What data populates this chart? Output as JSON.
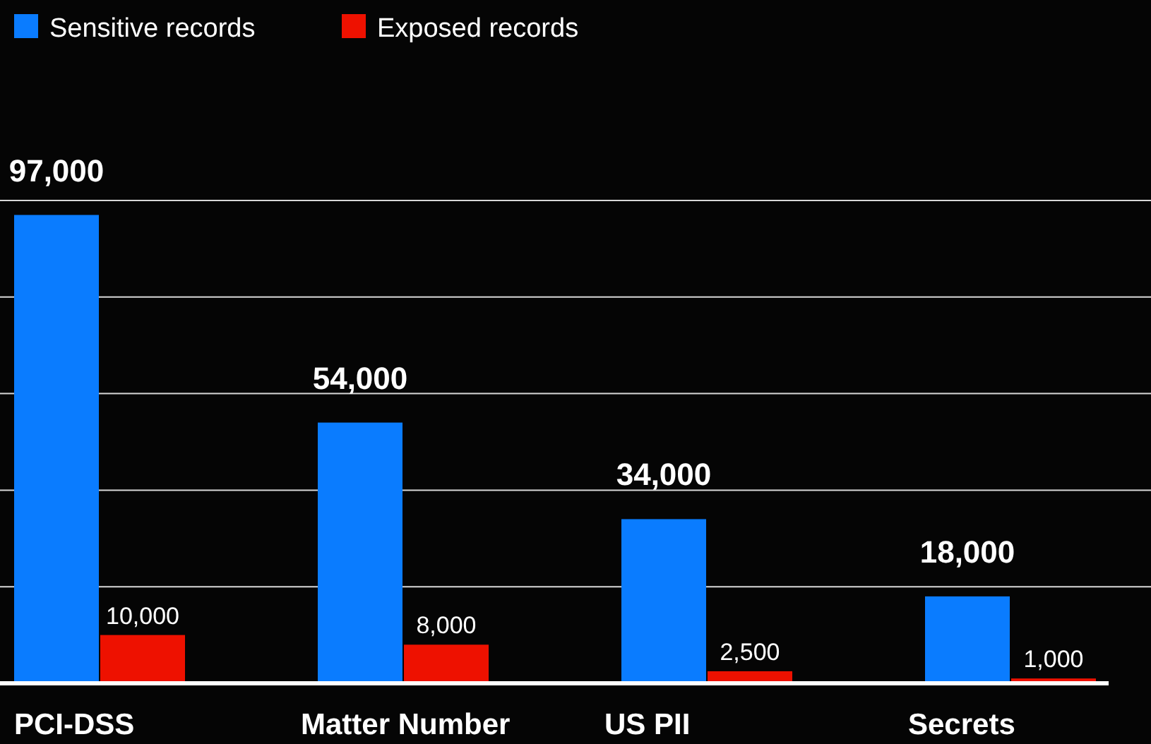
{
  "chart_data": {
    "type": "bar",
    "categories": [
      "PCI-DSS",
      "Matter Number",
      "US PII",
      "Secrets"
    ],
    "series": [
      {
        "name": "Sensitive records",
        "color": "#0a7cff",
        "values": [
          97000,
          54000,
          34000,
          18000
        ],
        "value_labels": [
          "97,000",
          "54,000",
          "34,000",
          "18,000"
        ]
      },
      {
        "name": "Exposed records",
        "color": "#ee1100",
        "values": [
          10000,
          8000,
          2500,
          1000
        ],
        "value_labels": [
          "10,000",
          "8,000",
          "2,500",
          "1,000"
        ]
      }
    ],
    "yticks": [
      {
        "value": 20000,
        "label": null
      },
      {
        "value": 40000,
        "label": null
      },
      {
        "value": 60000,
        "label": null
      },
      {
        "value": 80000,
        "label": null
      },
      {
        "value": 100000,
        "label": null
      }
    ],
    "grid": "y",
    "legend": "top left",
    "tick_labels": "x"
  }
}
